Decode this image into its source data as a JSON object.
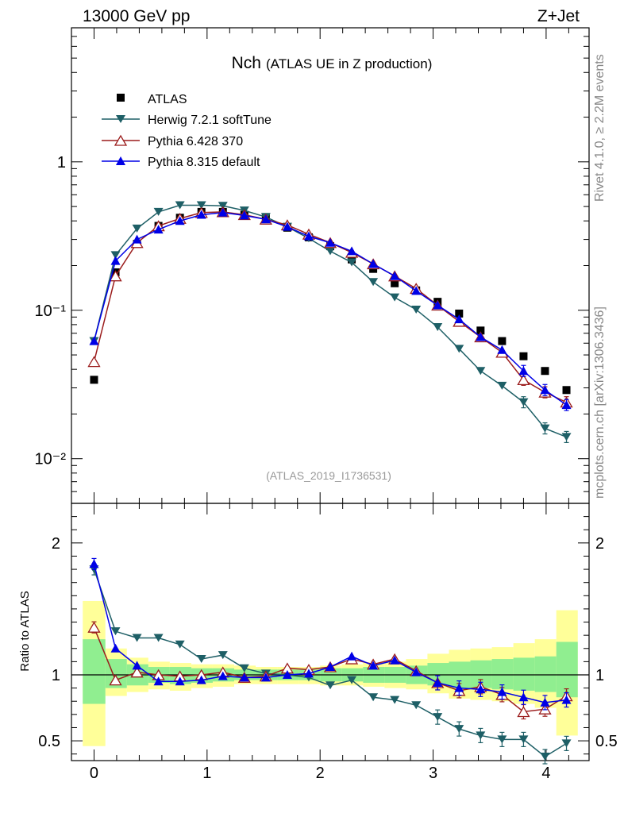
{
  "header": {
    "left": "13000 GeV pp",
    "right": "Z+Jet"
  },
  "side_text": {
    "rivet": "Rivet 4.1.0, ≥ 2.2M events",
    "mcplots": "mcplots.cern.ch [arXiv:1306.3436]"
  },
  "chart_data": [
    {
      "type": "scatter",
      "title": "Nch",
      "subtitle": "(ATLAS UE in Z production)",
      "watermark": "(ATLAS_2019_I1736531)",
      "yscale": "log",
      "ylim": [
        0.005,
        8
      ],
      "xlim": [
        -0.2,
        4.38
      ],
      "ytick_values": [
        0.01,
        0.1,
        1
      ],
      "ytick_labels": [
        "10⁻²",
        "10⁻¹",
        "1"
      ],
      "legend_position": "top-left",
      "x": [
        0,
        0.19,
        0.38,
        0.57,
        0.76,
        0.95,
        1.14,
        1.33,
        1.52,
        1.71,
        1.9,
        2.09,
        2.28,
        2.47,
        2.66,
        2.85,
        3.04,
        3.23,
        3.42,
        3.61,
        3.8,
        3.99,
        4.18
      ],
      "series": [
        {
          "name": "ATLAS",
          "color": "#000000",
          "marker": "square",
          "line": false,
          "values": [
            0.034,
            0.18,
            0.28,
            0.37,
            0.42,
            0.46,
            0.46,
            0.44,
            0.42,
            0.36,
            0.31,
            0.27,
            0.22,
            0.19,
            0.152,
            0.136,
            0.114,
            0.095,
            0.073,
            0.062,
            0.049,
            0.039,
            0.029
          ]
        },
        {
          "name": "Herwig 7.2.1 softTune",
          "color": "#1e5f66",
          "marker": "triangle-down",
          "line": true,
          "values": [
            0.062,
            0.235,
            0.355,
            0.46,
            0.51,
            0.51,
            0.505,
            0.47,
            0.425,
            0.365,
            0.305,
            0.25,
            0.21,
            0.155,
            0.122,
            0.101,
            0.077,
            0.055,
            0.039,
            0.031,
            0.024,
            0.016,
            0.014
          ]
        },
        {
          "name": "Pythia 6.428 370",
          "color": "#9b1c1c",
          "marker": "triangle-open",
          "line": true,
          "values": [
            0.045,
            0.17,
            0.285,
            0.37,
            0.415,
            0.455,
            0.46,
            0.44,
            0.41,
            0.375,
            0.325,
            0.285,
            0.245,
            0.205,
            0.17,
            0.14,
            0.108,
            0.084,
            0.066,
            0.052,
            0.034,
            0.028,
            0.024
          ]
        },
        {
          "name": "Pythia 8.315 default",
          "color": "#0000e6",
          "marker": "triangle-up",
          "line": true,
          "values": [
            0.062,
            0.215,
            0.3,
            0.35,
            0.4,
            0.44,
            0.455,
            0.435,
            0.41,
            0.365,
            0.315,
            0.285,
            0.25,
            0.205,
            0.17,
            0.135,
            0.108,
            0.087,
            0.066,
            0.054,
            0.039,
            0.029,
            0.023
          ]
        }
      ]
    },
    {
      "type": "scatter",
      "ylabel": "Ratio to ATLAS",
      "ylim": [
        0.35,
        2.3
      ],
      "xlim": [
        -0.2,
        4.38
      ],
      "reference_line": 1,
      "ytick_labels_left": [
        "0.5",
        "1",
        "2"
      ],
      "ytick_labels_right": [
        "0.5",
        "1",
        "2"
      ],
      "xtick_labels": [
        "0",
        "1",
        "2",
        "3",
        "4"
      ],
      "band_edges": [
        -0.1,
        0.1,
        0.29,
        0.48,
        0.67,
        0.86,
        1.05,
        1.24,
        1.43,
        1.62,
        1.81,
        2.0,
        2.19,
        2.38,
        2.57,
        2.76,
        2.95,
        3.14,
        3.33,
        3.52,
        3.71,
        3.9,
        4.09,
        4.28
      ],
      "band_inner": {
        "color": "#90ee90",
        "lo": [
          0.78,
          0.9,
          0.92,
          0.94,
          0.93,
          0.94,
          0.95,
          0.96,
          0.96,
          0.96,
          0.96,
          0.95,
          0.95,
          0.94,
          0.94,
          0.93,
          0.92,
          0.9,
          0.9,
          0.89,
          0.88,
          0.87,
          0.83
        ],
        "hi": [
          1.27,
          1.12,
          1.08,
          1.06,
          1.06,
          1.05,
          1.05,
          1.04,
          1.04,
          1.04,
          1.04,
          1.05,
          1.05,
          1.06,
          1.06,
          1.07,
          1.09,
          1.1,
          1.11,
          1.12,
          1.13,
          1.14,
          1.25
        ]
      },
      "band_outer": {
        "color": "#ffff99",
        "lo": [
          0.46,
          0.84,
          0.87,
          0.89,
          0.88,
          0.9,
          0.91,
          0.93,
          0.93,
          0.93,
          0.93,
          0.92,
          0.92,
          0.91,
          0.9,
          0.89,
          0.86,
          0.82,
          0.81,
          0.8,
          0.78,
          0.75,
          0.54
        ],
        "hi": [
          1.56,
          1.2,
          1.13,
          1.1,
          1.09,
          1.08,
          1.08,
          1.07,
          1.06,
          1.06,
          1.06,
          1.07,
          1.08,
          1.09,
          1.1,
          1.12,
          1.16,
          1.19,
          1.2,
          1.21,
          1.24,
          1.27,
          1.49
        ]
      },
      "x": [
        0,
        0.19,
        0.38,
        0.57,
        0.76,
        0.95,
        1.14,
        1.33,
        1.52,
        1.71,
        1.9,
        2.09,
        2.28,
        2.47,
        2.66,
        2.85,
        3.04,
        3.23,
        3.42,
        3.61,
        3.8,
        3.99,
        4.18
      ],
      "series": [
        {
          "name": "Herwig 7.2.1 softTune",
          "color": "#1e5f66",
          "marker": "triangle-down",
          "values": [
            1.8,
            1.33,
            1.28,
            1.28,
            1.23,
            1.12,
            1.15,
            1.05,
            1.01,
            1.0,
            0.98,
            0.92,
            0.96,
            0.83,
            0.81,
            0.77,
            0.68,
            0.59,
            0.54,
            0.51,
            0.51,
            0.38,
            0.48
          ]
        },
        {
          "name": "Pythia 6.428 370",
          "color": "#9b1c1c",
          "marker": "triangle-open",
          "values": [
            1.36,
            0.96,
            1.02,
            1.0,
            0.99,
            1.0,
            1.02,
            0.98,
            0.99,
            1.05,
            1.04,
            1.06,
            1.12,
            1.08,
            1.12,
            1.03,
            0.94,
            0.88,
            0.91,
            0.85,
            0.72,
            0.74,
            0.84
          ]
        },
        {
          "name": "Pythia 8.315 default",
          "color": "#0000e6",
          "marker": "triangle-up",
          "values": [
            1.84,
            1.2,
            1.07,
            0.95,
            0.95,
            0.96,
            0.99,
            0.98,
            0.98,
            1.0,
            1.01,
            1.06,
            1.14,
            1.07,
            1.11,
            1.02,
            0.94,
            0.9,
            0.89,
            0.87,
            0.83,
            0.79,
            0.81
          ]
        }
      ]
    }
  ]
}
